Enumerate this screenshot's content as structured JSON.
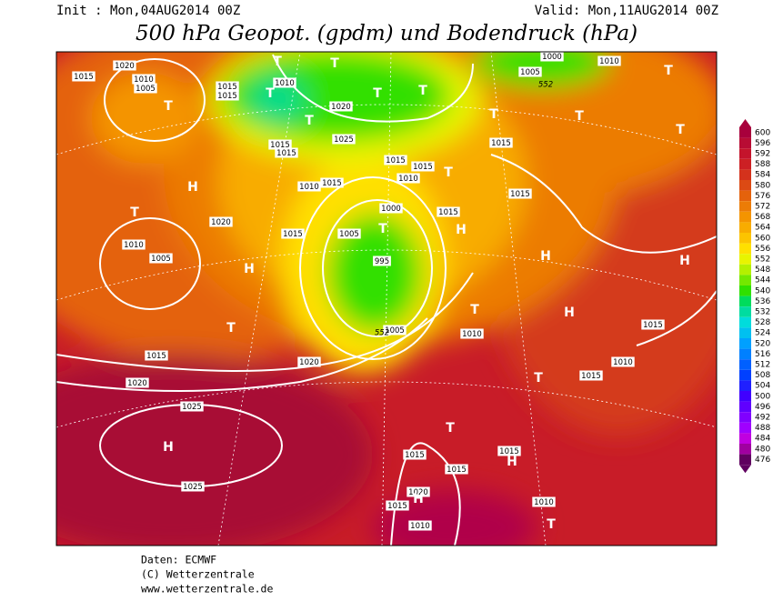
{
  "header": {
    "init": "Init : Mon,04AUG2014 00Z",
    "valid": "Valid: Mon,11AUG2014 00Z",
    "title": "500 hPa Geopot. (gpdm) und Bodendruck (hPa)"
  },
  "map": {
    "labels": [
      "1020",
      "1015",
      "1010",
      "1005",
      "T",
      "1015",
      "1015",
      "T",
      "T",
      "1010",
      "T",
      "1020",
      "T",
      "1025",
      "T",
      "1015",
      "1015",
      "T",
      "1010",
      "1005",
      "1000",
      "T",
      "T",
      "T",
      "T",
      "1015",
      "1015",
      "1015",
      "T",
      "1010",
      "1010",
      "1015",
      "H",
      "T",
      "1020",
      "1015",
      "1000",
      "1005",
      "T",
      "1015",
      "H",
      "1010",
      "1005",
      "H",
      "995",
      "H",
      "H",
      "H",
      "1015",
      "T",
      "1010",
      "1005",
      "T",
      "1015",
      "1020",
      "1020",
      "T",
      "1015",
      "1010",
      "1025",
      "T",
      "H",
      "1015",
      "1015",
      "H",
      "1015",
      "1025",
      "1020",
      "H",
      "1015",
      "1010",
      "T",
      "1010",
      "1015",
      "552",
      "552"
    ]
  },
  "colorbar": {
    "labels": [
      600,
      596,
      592,
      588,
      584,
      580,
      576,
      572,
      568,
      564,
      560,
      556,
      552,
      548,
      544,
      540,
      536,
      532,
      528,
      524,
      520,
      516,
      512,
      508,
      504,
      500,
      496,
      492,
      488,
      484,
      480,
      476
    ],
    "colors": [
      "#a8003c",
      "#b80c34",
      "#c4142c",
      "#cc2024",
      "#d4321c",
      "#dc4a14",
      "#e4620c",
      "#ec7c06",
      "#f49400",
      "#f8ac00",
      "#fcc400",
      "#ffe000",
      "#e8f400",
      "#b4f000",
      "#74e800",
      "#30e000",
      "#00dc5c",
      "#00dca0",
      "#00dcdc",
      "#00c0f0",
      "#00a0ff",
      "#0080ff",
      "#0060ff",
      "#0040ff",
      "#2020ff",
      "#4000ff",
      "#6000ff",
      "#8000ff",
      "#a000ff",
      "#c000e0",
      "#a000a0",
      "#600060"
    ]
  },
  "footer": {
    "source": "Daten: ECMWF",
    "copyright": "(C) Wetterzentrale",
    "url": "www.wetterzentrale.de"
  }
}
